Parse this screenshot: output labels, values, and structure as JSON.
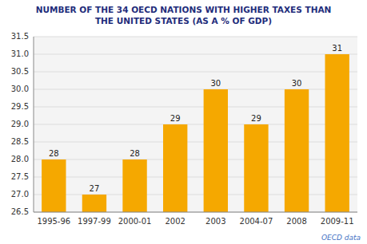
{
  "chart_data": {
    "type": "bar",
    "title": "NUMBER OF THE 34 OECD NATIONS WITH HIGHER TAXES THAN\nTHE UNITED STATES (AS A % OF GDP)",
    "categories": [
      "1995-96",
      "1997-99",
      "2000-01",
      "2002",
      "2003",
      "2004-07",
      "2008",
      "2009-11"
    ],
    "values": [
      28,
      27,
      28,
      29,
      30,
      29,
      30,
      31
    ],
    "color": "#F5A800",
    "ylim": [
      26.5,
      31.5
    ],
    "yticks": [
      26.5,
      {
        "value": 27,
        "label": "27.0"
      },
      27.5,
      {
        "value": 28,
        "label": "28.0"
      },
      28.5,
      {
        "value": 29,
        "label": "29.0"
      },
      29.5,
      {
        "value": 30,
        "label": "30.0"
      },
      30.5,
      {
        "value": 31,
        "label": "31.0"
      },
      31.5
    ],
    "grid": true,
    "data_labels": true,
    "annotations": [
      "OECD data"
    ]
  }
}
